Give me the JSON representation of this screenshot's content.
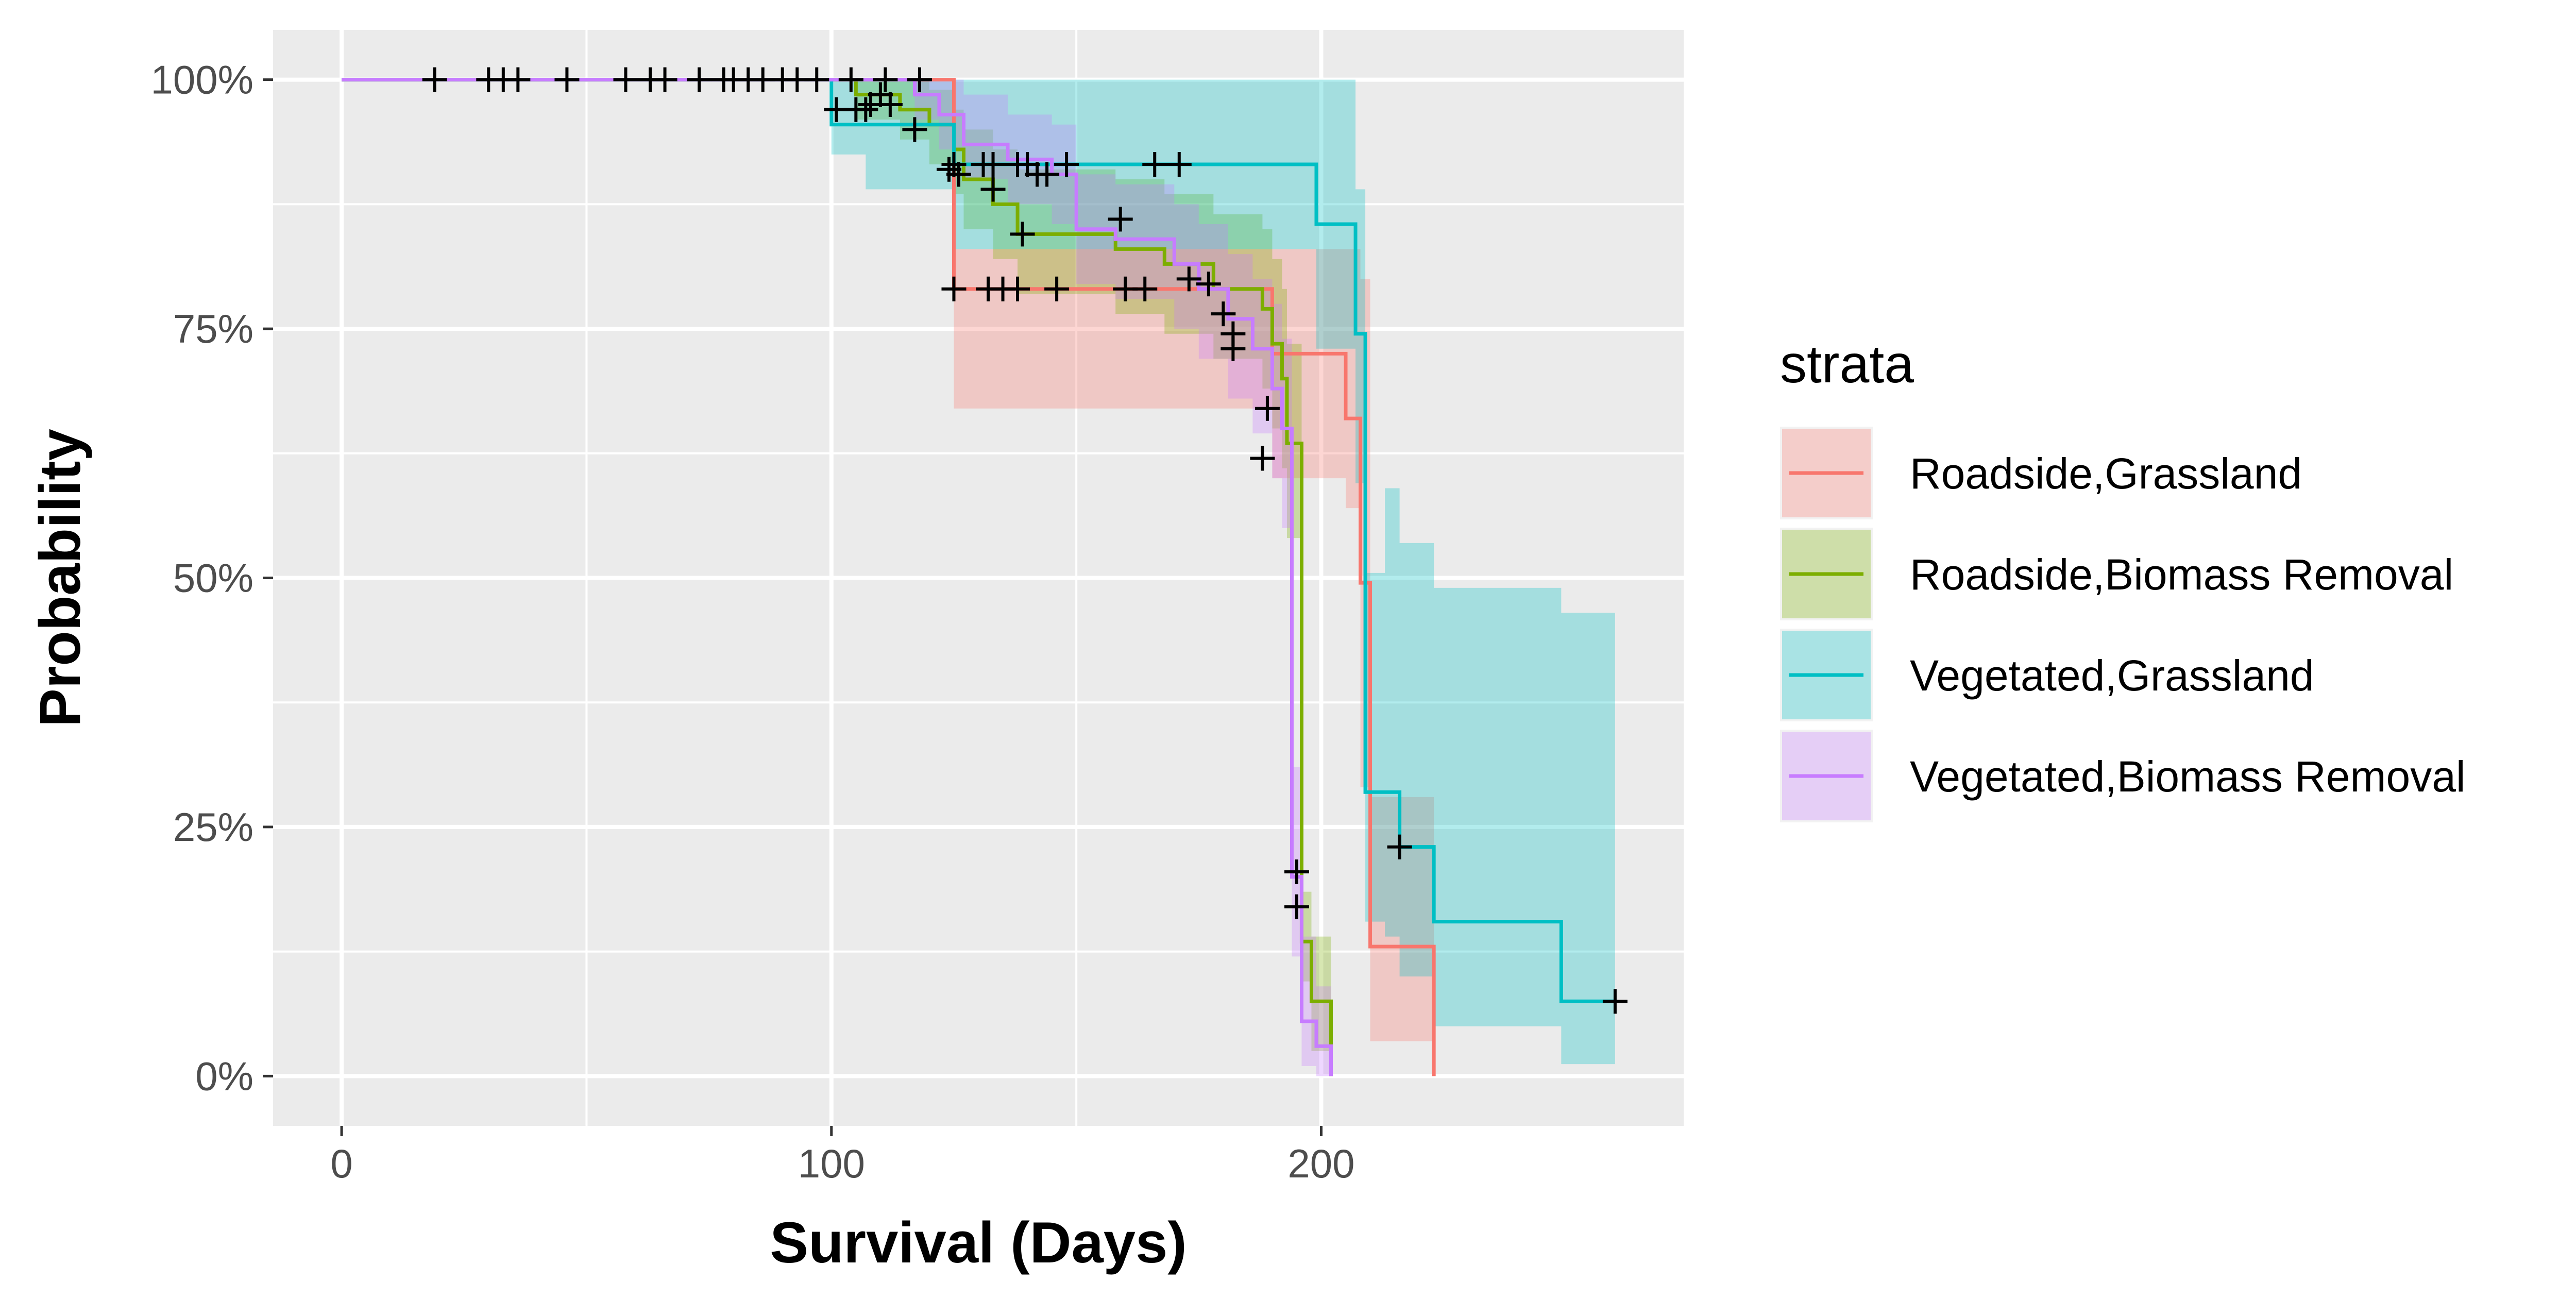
{
  "chart_data": {
    "type": "line",
    "subtype": "kaplan-meier-survival",
    "xlabel": "Survival (Days)",
    "ylabel": "Probability",
    "xlim": [
      -14,
      274
    ],
    "ylim": [
      -0.05,
      1.05
    ],
    "x_ticks": [
      0,
      100,
      200
    ],
    "x_tick_labels": [
      "0",
      "100",
      "200"
    ],
    "y_ticks": [
      0,
      0.25,
      0.5,
      0.75,
      1
    ],
    "y_tick_labels": [
      "0%",
      "25%",
      "50%",
      "75%",
      "100%"
    ],
    "grid": true,
    "panel_background": "#ebebeb",
    "grid_color": "#ffffff",
    "censor_marker": "+",
    "censor_color": "#000000",
    "confidence_band_opacity": 0.3,
    "legend": {
      "title": "strata",
      "position": "right"
    },
    "series": [
      {
        "name": "Roadside,Grassland",
        "color": "#F8766D",
        "steps": [
          [
            0,
            1.0
          ],
          [
            125,
            0.79
          ],
          [
            190,
            0.725
          ],
          [
            205,
            0.66
          ],
          [
            208,
            0.495
          ],
          [
            210,
            0.13
          ],
          [
            223,
            0.0
          ]
        ],
        "ci": [
          [
            0,
            1.0,
            1.0
          ],
          [
            125,
            0.67,
            0.83
          ],
          [
            190,
            0.6,
            0.83
          ],
          [
            205,
            0.57,
            0.83
          ],
          [
            208,
            0.29,
            0.8
          ],
          [
            210,
            0.035,
            0.28
          ],
          [
            223,
            0.0,
            0.0
          ]
        ],
        "censored": [
          [
            125,
            0.79
          ],
          [
            132,
            0.79
          ],
          [
            135,
            0.79
          ],
          [
            138,
            0.79
          ],
          [
            146,
            0.79
          ],
          [
            160,
            0.79
          ],
          [
            164,
            0.79
          ]
        ],
        "last_x": 223
      },
      {
        "name": "Roadside,Biomass Removal",
        "color": "#7CAE00",
        "steps": [
          [
            0,
            1.0
          ],
          [
            105,
            0.985
          ],
          [
            114,
            0.97
          ],
          [
            120,
            0.955
          ],
          [
            125,
            0.93
          ],
          [
            127,
            0.9
          ],
          [
            133,
            0.875
          ],
          [
            138,
            0.845
          ],
          [
            158,
            0.83
          ],
          [
            168,
            0.815
          ],
          [
            178,
            0.79
          ],
          [
            188,
            0.77
          ],
          [
            190,
            0.735
          ],
          [
            192,
            0.7
          ],
          [
            193,
            0.635
          ],
          [
            196,
            0.135
          ],
          [
            198,
            0.075
          ],
          [
            202,
            0.0
          ]
        ],
        "ci": [
          [
            0,
            1.0,
            1.0
          ],
          [
            105,
            0.96,
            1.0
          ],
          [
            114,
            0.94,
            1.0
          ],
          [
            120,
            0.915,
            0.99
          ],
          [
            125,
            0.885,
            0.97
          ],
          [
            127,
            0.85,
            0.95
          ],
          [
            133,
            0.82,
            0.93
          ],
          [
            138,
            0.785,
            0.91
          ],
          [
            158,
            0.765,
            0.9
          ],
          [
            168,
            0.745,
            0.885
          ],
          [
            178,
            0.72,
            0.865
          ],
          [
            188,
            0.69,
            0.85
          ],
          [
            190,
            0.65,
            0.82
          ],
          [
            192,
            0.61,
            0.79
          ],
          [
            193,
            0.54,
            0.735
          ],
          [
            196,
            0.095,
            0.185
          ],
          [
            198,
            0.025,
            0.14
          ],
          [
            202,
            0.0,
            0.0
          ]
        ],
        "censored": [
          [
            107,
            0.97
          ],
          [
            110,
            0.985
          ],
          [
            133,
            0.89
          ],
          [
            139,
            0.845
          ],
          [
            177,
            0.795
          ],
          [
            180,
            0.765
          ],
          [
            182,
            0.745
          ],
          [
            189,
            0.67
          ],
          [
            195,
            0.17
          ]
        ],
        "last_x": 202
      },
      {
        "name": "Vegetated,Grassland",
        "color": "#00BFC4",
        "steps": [
          [
            0,
            1.0
          ],
          [
            100,
            0.955
          ],
          [
            125,
            0.915
          ],
          [
            199,
            0.855
          ],
          [
            207,
            0.745
          ],
          [
            209,
            0.285
          ],
          [
            216,
            0.23
          ],
          [
            223,
            0.155
          ],
          [
            249,
            0.075
          ]
        ],
        "ci": [
          [
            0,
            1.0,
            1.0
          ],
          [
            100,
            0.925,
            1.0
          ],
          [
            107,
            0.89,
            1.0
          ],
          [
            125,
            0.83,
            1.0
          ],
          [
            199,
            0.73,
            1.0
          ],
          [
            207,
            0.595,
            0.89
          ],
          [
            209,
            0.155,
            0.505
          ],
          [
            213,
            0.14,
            0.59
          ],
          [
            216,
            0.1,
            0.535
          ],
          [
            223,
            0.05,
            0.49
          ],
          [
            249,
            0.012,
            0.465
          ],
          [
            260,
            0.012,
            0.465
          ]
        ],
        "censored": [
          [
            101,
            0.97
          ],
          [
            105,
            0.97
          ],
          [
            108,
            0.975
          ],
          [
            112,
            0.975
          ],
          [
            117,
            0.95
          ],
          [
            125,
            0.915
          ],
          [
            133,
            0.915
          ],
          [
            148,
            0.915
          ],
          [
            166,
            0.915
          ],
          [
            171,
            0.915
          ],
          [
            216,
            0.23
          ],
          [
            260,
            0.075
          ]
        ],
        "last_x": 260
      },
      {
        "name": "Vegetated,Biomass Removal",
        "color": "#C77CFF",
        "steps": [
          [
            0,
            1.0
          ],
          [
            117,
            0.985
          ],
          [
            122,
            0.965
          ],
          [
            127,
            0.935
          ],
          [
            136,
            0.92
          ],
          [
            145,
            0.905
          ],
          [
            150,
            0.85
          ],
          [
            158,
            0.84
          ],
          [
            170,
            0.815
          ],
          [
            175,
            0.79
          ],
          [
            181,
            0.76
          ],
          [
            186,
            0.73
          ],
          [
            190,
            0.69
          ],
          [
            192,
            0.65
          ],
          [
            194,
            0.2
          ],
          [
            196,
            0.055
          ],
          [
            199,
            0.03
          ],
          [
            202,
            0.0
          ]
        ],
        "ci": [
          [
            0,
            1.0,
            1.0
          ],
          [
            117,
            0.96,
            1.0
          ],
          [
            122,
            0.93,
            1.0
          ],
          [
            127,
            0.9,
            0.985
          ],
          [
            136,
            0.875,
            0.965
          ],
          [
            145,
            0.855,
            0.955
          ],
          [
            150,
            0.795,
            0.905
          ],
          [
            158,
            0.78,
            0.895
          ],
          [
            170,
            0.75,
            0.875
          ],
          [
            175,
            0.72,
            0.855
          ],
          [
            181,
            0.68,
            0.825
          ],
          [
            186,
            0.645,
            0.8
          ],
          [
            190,
            0.6,
            0.775
          ],
          [
            192,
            0.55,
            0.74
          ],
          [
            194,
            0.12,
            0.31
          ],
          [
            196,
            0.01,
            0.14
          ],
          [
            199,
            0.0,
            0.09
          ],
          [
            202,
            0.0,
            0.0
          ]
        ],
        "censored": [
          [
            19,
            1.0
          ],
          [
            30,
            1.0
          ],
          [
            33,
            1.0
          ],
          [
            36,
            1.0
          ],
          [
            46,
            1.0
          ],
          [
            58,
            1.0
          ],
          [
            63,
            1.0
          ],
          [
            66,
            1.0
          ],
          [
            73,
            1.0
          ],
          [
            78,
            1.0
          ],
          [
            80,
            1.0
          ],
          [
            83,
            1.0
          ],
          [
            86,
            1.0
          ],
          [
            90,
            1.0
          ],
          [
            93,
            1.0
          ],
          [
            97,
            1.0
          ],
          [
            104,
            1.0
          ],
          [
            111,
            1.0
          ],
          [
            118,
            1.0
          ],
          [
            124,
            0.91
          ],
          [
            126,
            0.905
          ],
          [
            131,
            0.915
          ],
          [
            138,
            0.915
          ],
          [
            140,
            0.915
          ],
          [
            142,
            0.905
          ],
          [
            144,
            0.905
          ],
          [
            159,
            0.86
          ],
          [
            173,
            0.8
          ],
          [
            182,
            0.73
          ],
          [
            188,
            0.62
          ],
          [
            195,
            0.205
          ]
        ],
        "last_x": 202
      }
    ]
  }
}
